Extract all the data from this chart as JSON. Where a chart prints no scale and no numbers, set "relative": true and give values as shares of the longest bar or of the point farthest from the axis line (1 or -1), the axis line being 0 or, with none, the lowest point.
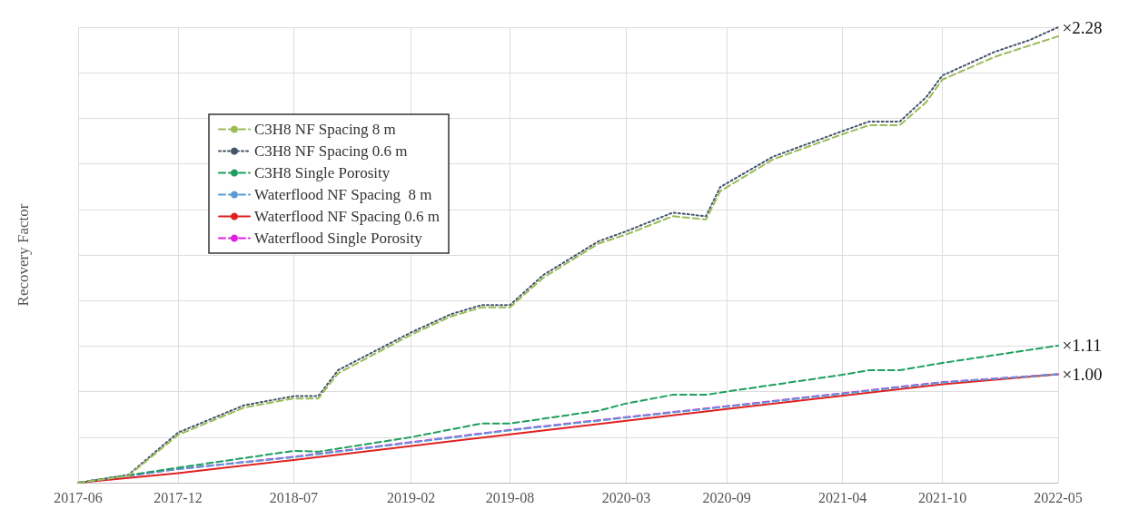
{
  "chart_data": {
    "type": "line",
    "ylabel": "Recovery Factor",
    "relative": true,
    "xlim": [
      "2017-06",
      "2022-05"
    ],
    "xticks": [
      "2017-06",
      "2017-12",
      "2018-07",
      "2019-02",
      "2019-08",
      "2020-03",
      "2020-09",
      "2021-04",
      "2021-10",
      "2022-05"
    ],
    "grid": true,
    "legend": "top left",
    "marker": "none",
    "series": [
      {
        "name": "C3H8 NF Spacing 8 m",
        "color": "#9bbb59",
        "line_style": "dashed",
        "x": [
          "2017-06",
          "2017-09",
          "2017-12",
          "2018-04",
          "2018-07",
          "2018-08-15",
          "2018-09-20",
          "2019-02",
          "2019-04-15",
          "2019-06-10",
          "2019-08",
          "2019-10",
          "2020-01-10",
          "2020-03",
          "2020-05-25",
          "2020-07-25",
          "2020-08-20",
          "2020-11-25",
          "2021-04",
          "2021-05-20",
          "2021-07-15",
          "2021-09-01",
          "2021-10",
          "2022-01-05",
          "2022-03-10",
          "2022-05"
        ],
        "values": [
          0,
          0.015,
          0.105,
          0.165,
          0.185,
          0.185,
          0.24,
          0.325,
          0.365,
          0.385,
          0.385,
          0.45,
          0.525,
          0.545,
          0.585,
          0.578,
          0.64,
          0.71,
          0.765,
          0.785,
          0.785,
          0.835,
          0.885,
          0.935,
          0.96,
          0.98
        ]
      },
      {
        "name": "C3H8 NF Spacing 0.6 m",
        "color": "#44546a",
        "line_style": "dotted",
        "x": [
          "2017-06",
          "2017-09",
          "2017-12",
          "2018-04",
          "2018-07",
          "2018-08-15",
          "2018-09-20",
          "2019-02",
          "2019-04-15",
          "2019-06-10",
          "2019-08",
          "2019-10",
          "2020-01-10",
          "2020-03",
          "2020-05-25",
          "2020-07-25",
          "2020-08-20",
          "2020-11-25",
          "2021-04",
          "2021-05-20",
          "2021-07-15",
          "2021-09-01",
          "2021-10",
          "2022-01-05",
          "2022-03-10",
          "2022-05"
        ],
        "values": [
          0,
          0.017,
          0.11,
          0.17,
          0.19,
          0.19,
          0.247,
          0.33,
          0.37,
          0.39,
          0.39,
          0.456,
          0.53,
          0.552,
          0.593,
          0.585,
          0.649,
          0.716,
          0.772,
          0.793,
          0.793,
          0.846,
          0.894,
          0.946,
          0.972,
          1
        ]
      },
      {
        "name": "C3H8 Single Porosity",
        "color": "#1e9e5e",
        "line_style": "dashed",
        "x": [
          "2017-06",
          "2017-12",
          "2018-07",
          "2018-08-15",
          "2019-02",
          "2019-06-10",
          "2019-08",
          "2020-01-10",
          "2020-03",
          "2020-05-25",
          "2020-07-25",
          "2020-09",
          "2021-04",
          "2021-05-20",
          "2021-07-15",
          "2021-10",
          "2022-05"
        ],
        "values": [
          0,
          0.033,
          0.07,
          0.068,
          0.1,
          0.13,
          0.13,
          0.158,
          0.174,
          0.193,
          0.193,
          0.2,
          0.237,
          0.247,
          0.247,
          0.263,
          0.301
        ]
      },
      {
        "name": "Waterflood NF Spacing  8 m",
        "color": "#5b9bd5",
        "line_style": "dashed",
        "x": [
          "2017-06",
          "2017-12",
          "2018-07",
          "2019-08",
          "2020-09",
          "2021-10",
          "2022-05"
        ],
        "values": [
          0,
          0.03,
          0.056,
          0.115,
          0.167,
          0.22,
          0.238
        ]
      },
      {
        "name": "Waterflood NF Spacing 0.6 m",
        "color": "#e02020",
        "line_style": "solid",
        "x": [
          "2017-06",
          "2017-12",
          "2018-07",
          "2019-08",
          "2020-09",
          "2021-10",
          "2022-05"
        ],
        "values": [
          0,
          0.021,
          0.05,
          0.106,
          0.162,
          0.216,
          0.238
        ]
      },
      {
        "name": "Waterflood Single Porosity",
        "color": "#e020e0",
        "line_style": "dashed",
        "x": [
          "2017-06",
          "2017-12",
          "2018-07",
          "2019-08",
          "2020-09",
          "2021-10",
          "2022-05"
        ],
        "values": [
          0,
          0.03,
          0.057,
          0.116,
          0.168,
          0.221,
          0.238
        ]
      }
    ],
    "annotations": [
      {
        "text": "×2.28",
        "x": "2022-05",
        "y": 1
      },
      {
        "text": "×1.11",
        "x": "2022-05",
        "y": 0.301
      },
      {
        "text": "×1.00",
        "x": "2022-05",
        "y": 0.238
      }
    ]
  }
}
